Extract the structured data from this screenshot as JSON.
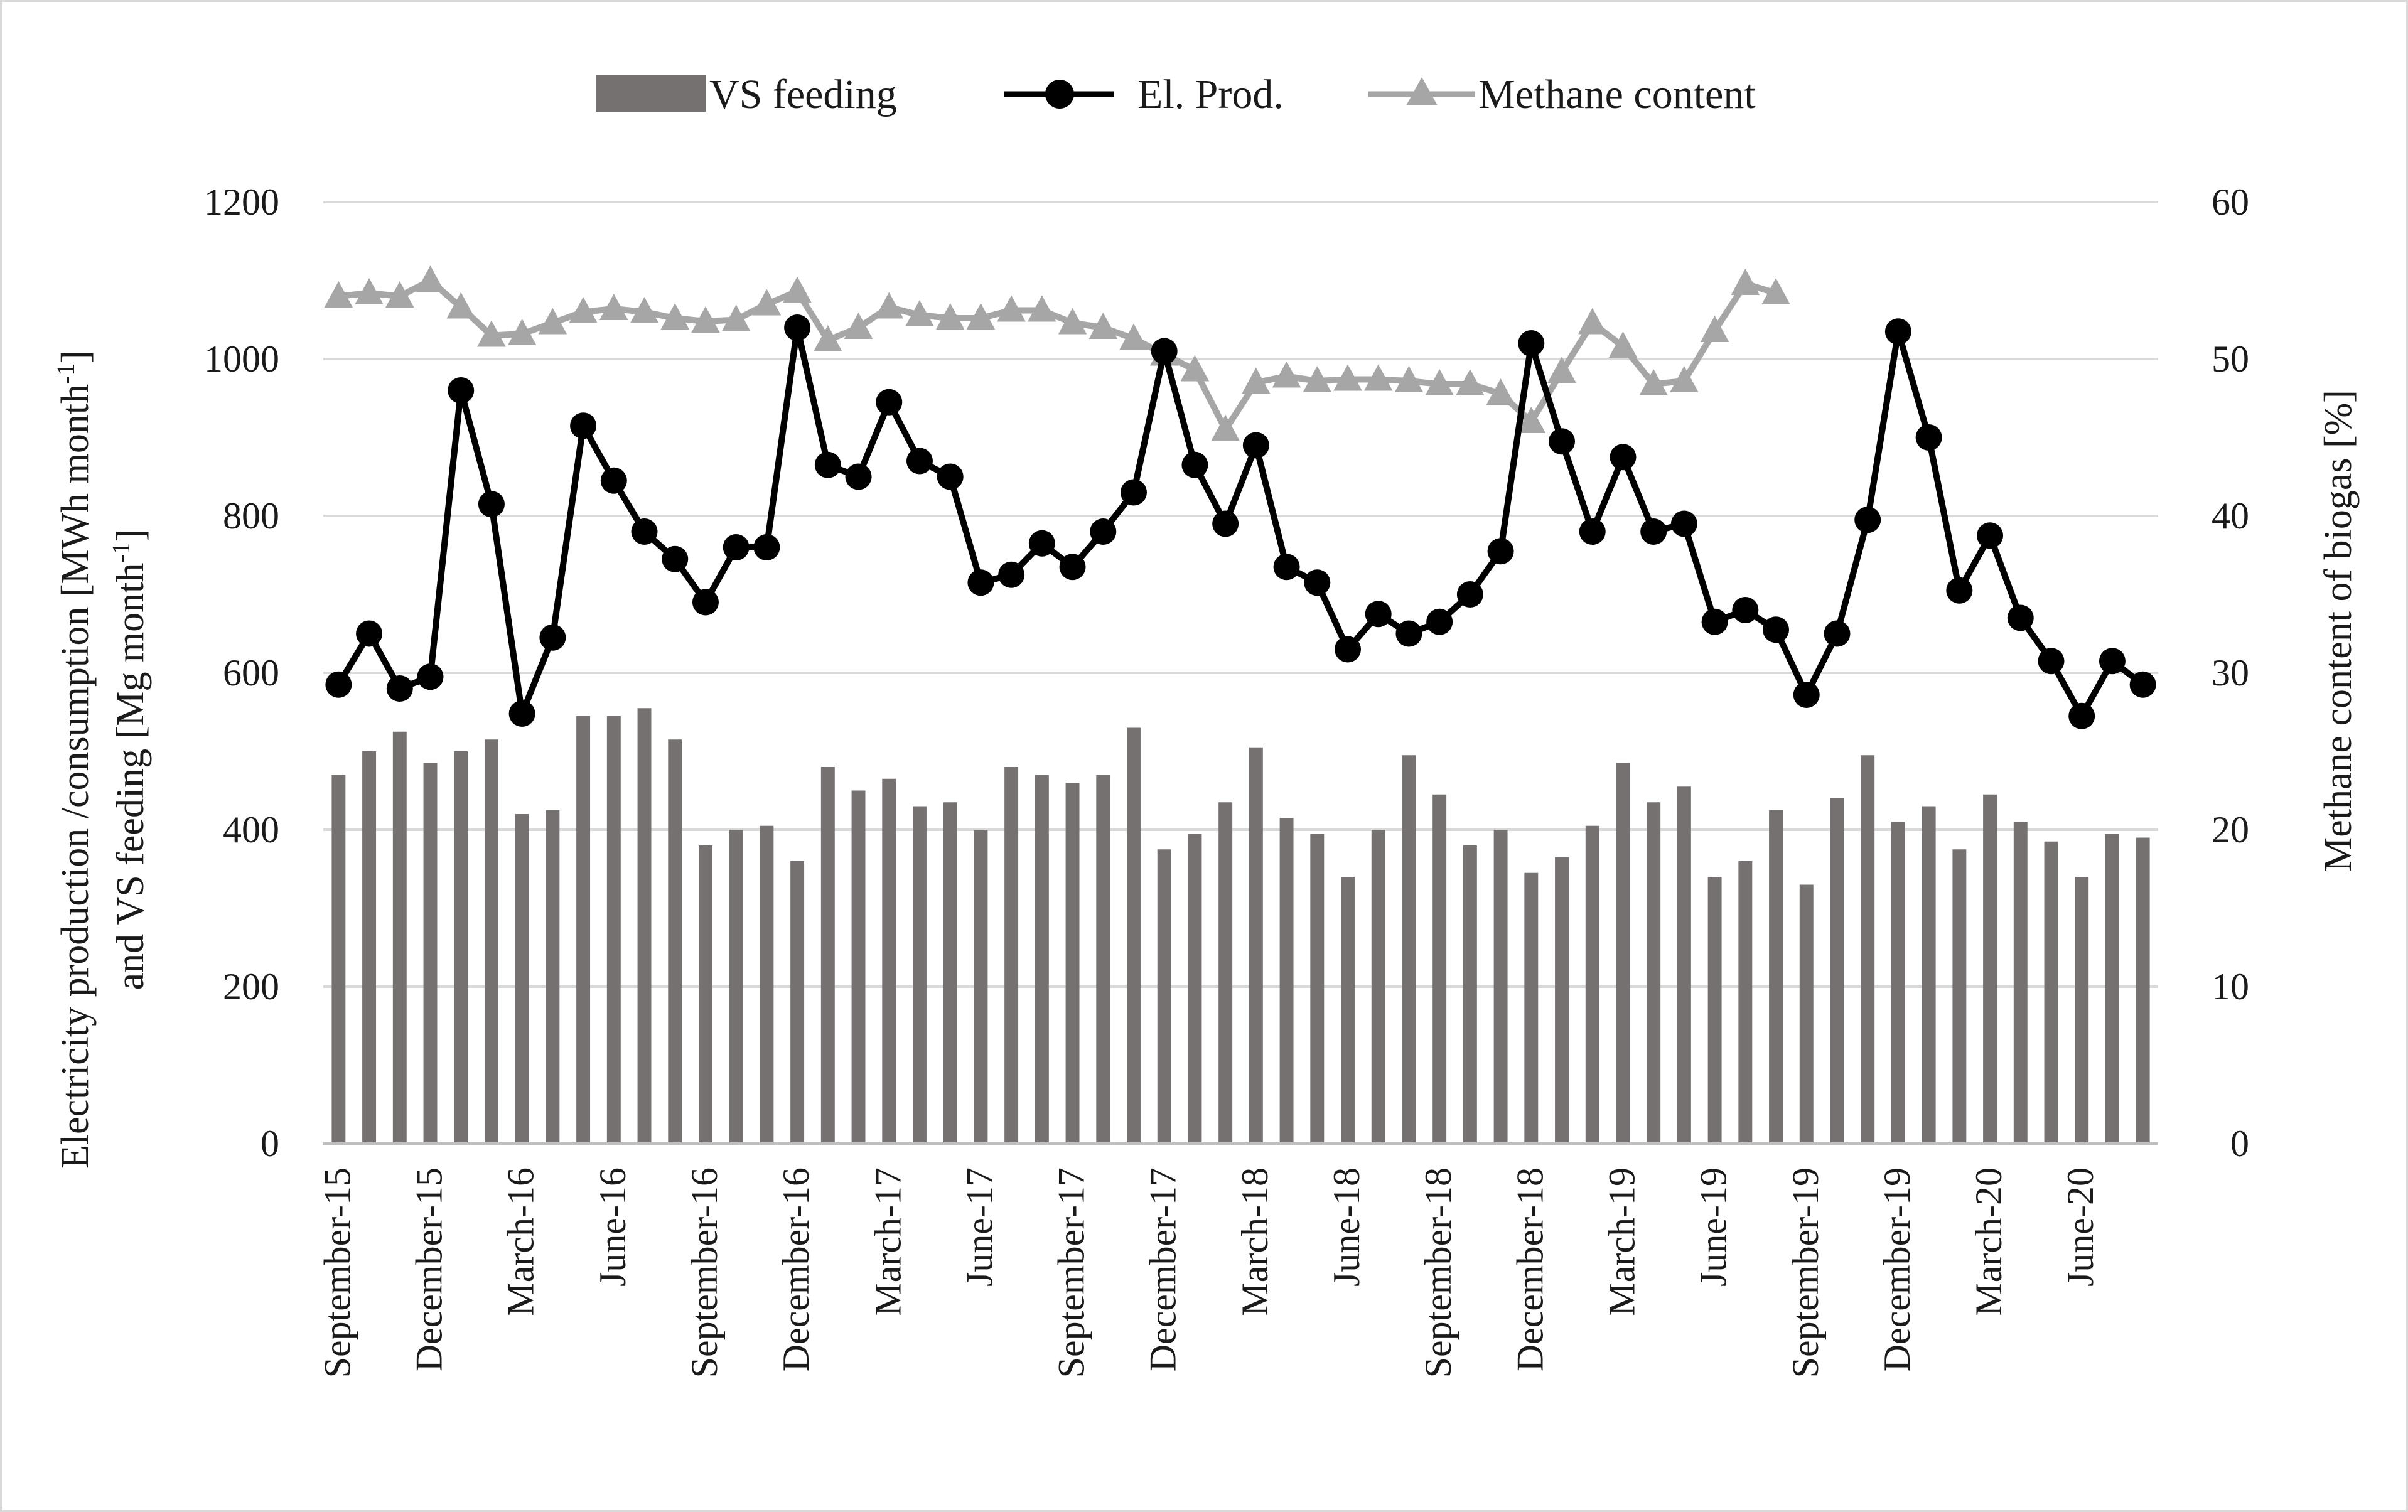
{
  "chart_data": {
    "type": "bar+line",
    "legend": [
      "VS feeding",
      "El. Prod.",
      "Methane content"
    ],
    "legend_position": "top",
    "ylabel_left": [
      "Electricity production /consumption [MWh month",
      "-1",
      "]",
      "and  VS feeding [Mg month",
      "-1",
      "]"
    ],
    "ylabel_right": "Methane content of biogas [%]",
    "ylim_left": [
      0,
      1200
    ],
    "ylim_right": [
      0,
      60
    ],
    "yticks_left": [
      "0",
      "200",
      "400",
      "600",
      "800",
      "1000",
      "1200"
    ],
    "yticks_right": [
      "0",
      "10",
      "20",
      "30",
      "40",
      "50",
      "60"
    ],
    "x_tick_labels": [
      "September-15",
      "December-15",
      "March-16",
      "June-16",
      "September-16",
      "December-16",
      "March-17",
      "June-17",
      "September-17",
      "December-17",
      "March-18",
      "June-18",
      "September-18",
      "December-18",
      "March-19",
      "June-19",
      "September-19",
      "December-19",
      "March-20",
      "June-20"
    ],
    "grid": "horizontal",
    "colors": {
      "bars": "#767171",
      "el_prod": "#000000",
      "methane": "#a6a6a6",
      "grid": "#d9d9d9"
    },
    "series": [
      {
        "name": "VS feeding",
        "axis": "left",
        "type": "bar",
        "values": [
          470,
          500,
          525,
          485,
          500,
          515,
          420,
          425,
          545,
          545,
          555,
          515,
          380,
          400,
          405,
          360,
          480,
          450,
          465,
          430,
          435,
          400,
          480,
          470,
          460,
          470,
          530,
          375,
          395,
          435,
          505,
          415,
          395,
          340,
          400,
          495,
          445,
          380,
          400,
          345,
          365,
          405,
          485,
          435,
          455,
          340,
          360,
          425,
          330,
          440,
          495,
          410,
          430,
          375,
          445,
          410,
          385,
          340,
          395,
          390
        ]
      },
      {
        "name": "El. Prod.",
        "axis": "left",
        "type": "line",
        "marker": "circle",
        "values": [
          585,
          650,
          580,
          595,
          960,
          815,
          548,
          645,
          915,
          845,
          780,
          745,
          690,
          760,
          760,
          1040,
          865,
          850,
          945,
          870,
          850,
          715,
          725,
          765,
          735,
          780,
          830,
          1010,
          865,
          790,
          890,
          735,
          715,
          630,
          675,
          650,
          665,
          700,
          755,
          1020,
          895,
          780,
          875,
          780,
          790,
          665,
          680,
          655,
          572,
          650,
          795,
          1035,
          900,
          705,
          775,
          670,
          615,
          545,
          615,
          585
        ]
      },
      {
        "name": "Methane content",
        "axis": "right",
        "type": "line",
        "marker": "triangle",
        "values": [
          54.0,
          54.2,
          54.0,
          55.0,
          53.3,
          51.5,
          51.6,
          52.3,
          53.0,
          53.2,
          53.0,
          52.6,
          52.4,
          52.5,
          53.5,
          54.3,
          51.2,
          52.0,
          53.3,
          52.8,
          52.6,
          52.6,
          53.1,
          53.1,
          52.3,
          52.0,
          51.3,
          50.3,
          49.3,
          45.5,
          48.5,
          48.9,
          48.6,
          48.7,
          48.7,
          48.6,
          48.4,
          48.4,
          47.8,
          46.0,
          49.2,
          52.3,
          50.8,
          48.4,
          48.6,
          51.8,
          54.8,
          54.2,
          null,
          null,
          null,
          null,
          null,
          null,
          null,
          null,
          null,
          null,
          null,
          null
        ]
      }
    ]
  }
}
